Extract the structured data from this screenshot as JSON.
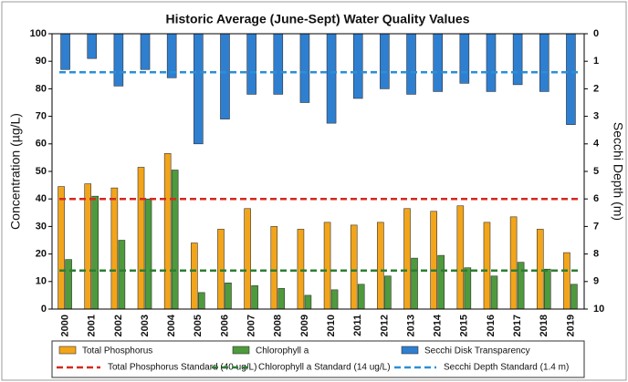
{
  "chart_data": {
    "type": "bar",
    "title": "Historic Average (June-Sept) Water Quality Values",
    "y_label": "Concentration (µg/L)",
    "y2_label": "Secchi Depth (m)",
    "categories": [
      "2000",
      "2001",
      "2002",
      "2003",
      "2004",
      "2005",
      "2006",
      "2007",
      "2008",
      "2009",
      "2010",
      "2011",
      "2012",
      "2013",
      "2014",
      "2015",
      "2016",
      "2017",
      "2018",
      "2019"
    ],
    "series": [
      {
        "name": "Total Phosphorus",
        "color": "#f2a51a",
        "values": [
          44.5,
          45.5,
          44,
          51.5,
          56.5,
          24,
          29,
          36.5,
          30,
          29,
          31.5,
          30.5,
          31.5,
          36.5,
          35.5,
          37.5,
          31.5,
          33.5,
          29,
          20.5
        ]
      },
      {
        "name": "Chlorophyll a",
        "color": "#4e9a3c",
        "values": [
          18,
          41,
          25,
          40,
          50.5,
          6,
          9.5,
          8.5,
          7.5,
          5,
          7,
          9,
          12,
          18.5,
          19.5,
          15,
          12,
          17,
          14.5,
          9
        ]
      },
      {
        "name": "Secchi Disk Transparency",
        "color": "#2f7fd0",
        "axis": "y2",
        "values": [
          1.3,
          0.9,
          1.9,
          1.3,
          1.6,
          4.0,
          3.1,
          2.2,
          2.2,
          2.5,
          3.25,
          2.35,
          2.0,
          2.2,
          2.1,
          1.8,
          2.1,
          1.85,
          2.1,
          3.3
        ]
      }
    ],
    "reference_lines": [
      {
        "name": "Total Phosphorus Standard (40 ug/L)",
        "value": 40,
        "color": "#d42a1e"
      },
      {
        "name": "Chlorophyll a Standard (14 ug/L)",
        "value": 14,
        "color": "#2e7d32"
      },
      {
        "name": "Secchi Depth Standard (1.4 m)",
        "value": 1.4,
        "color": "#2b8fd8",
        "axis": "y2"
      }
    ],
    "ylim": [
      0,
      100
    ],
    "yticks": [
      0,
      10,
      20,
      30,
      40,
      50,
      60,
      70,
      80,
      90,
      100
    ],
    "y2lim": [
      0,
      10
    ],
    "y2ticks": [
      0,
      1,
      2,
      3,
      4,
      5,
      6,
      7,
      8,
      9,
      10
    ],
    "y2_inverted": true,
    "grid": false,
    "legend": "bottom"
  }
}
